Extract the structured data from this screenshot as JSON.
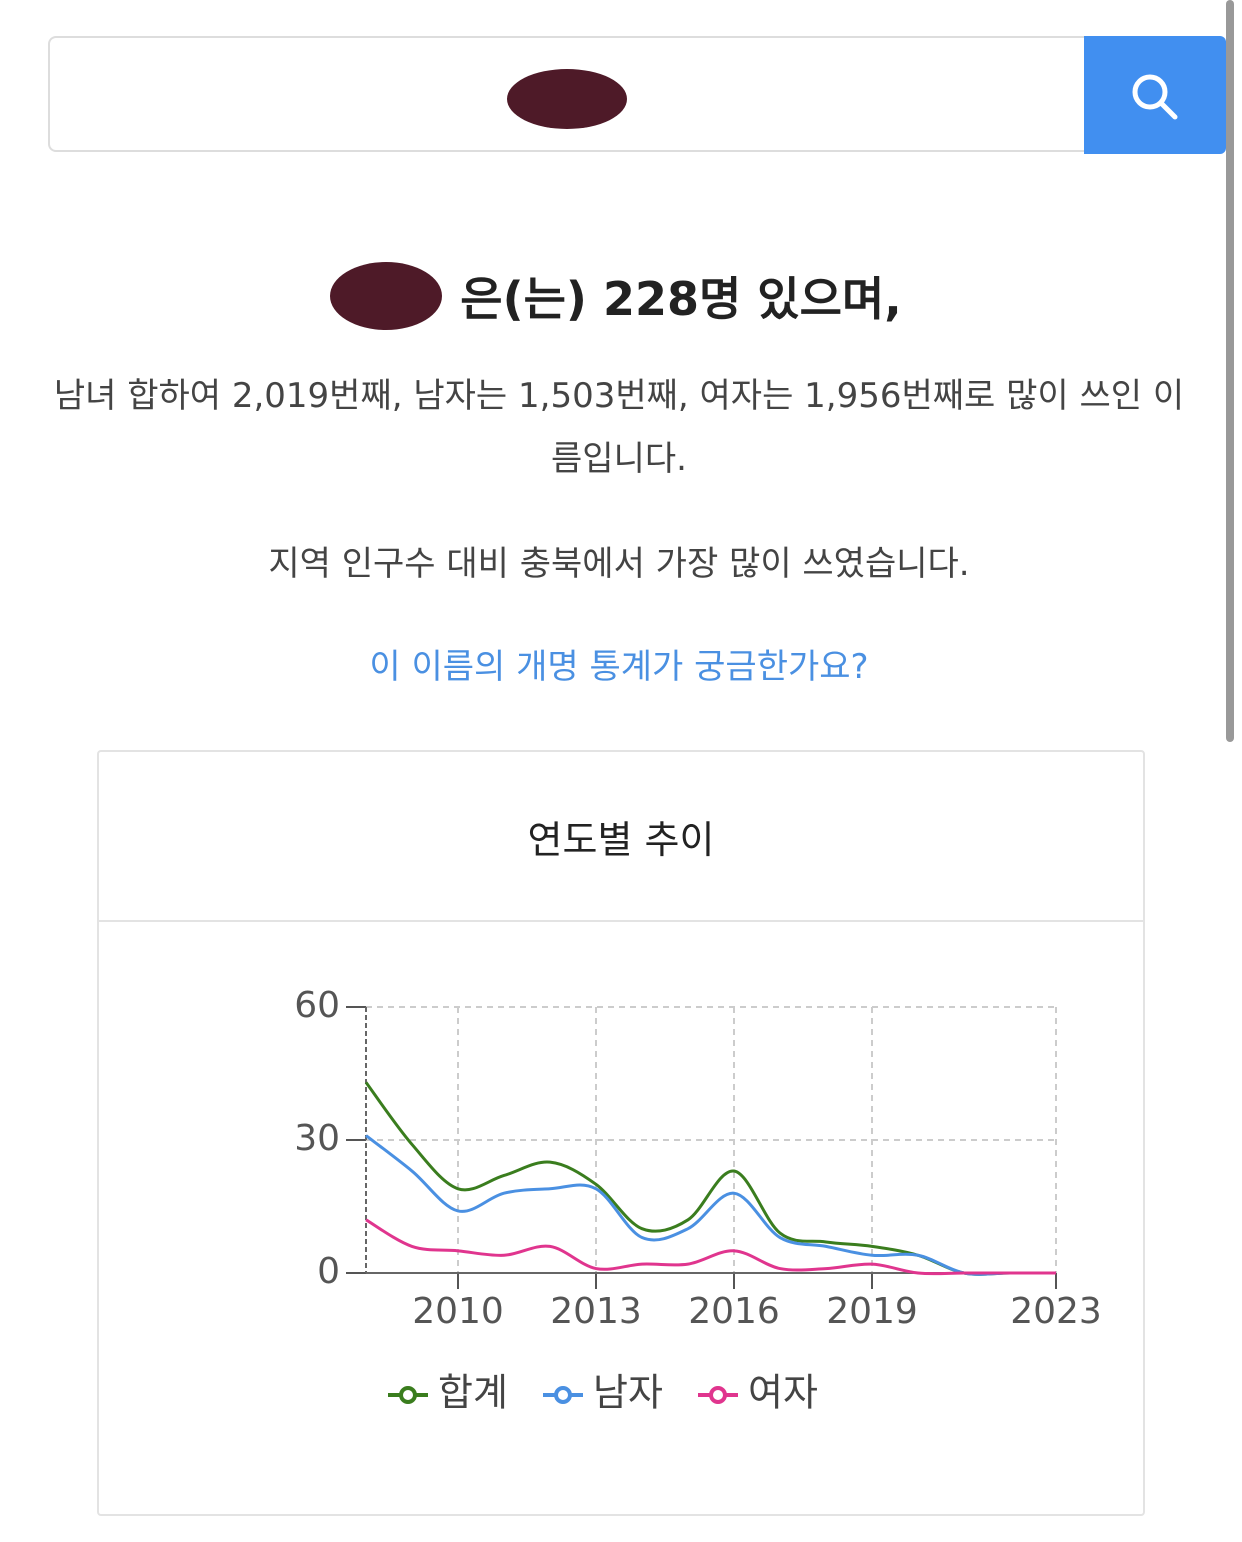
{
  "result": {
    "headline": "은(는) 228명 있으며,",
    "ranking": "남녀 합하여 2,019번째, 남자는 1,503번째, 여자는 1,956번째로 많이 쓰인 이름입니다.",
    "region": "지역 인구수 대비 충북에서 가장 많이 쓰였습니다.",
    "link": "이 이름의 개명 통계가 궁금한가요?"
  },
  "chart_data": {
    "type": "line",
    "title": "연도별 추이",
    "x": [
      2008,
      2009,
      2010,
      2011,
      2012,
      2013,
      2014,
      2015,
      2016,
      2017,
      2018,
      2019,
      2020,
      2021,
      2022,
      2023
    ],
    "series": [
      {
        "name": "합계",
        "color": "#3a7d1e",
        "values": [
          43,
          29,
          19,
          22,
          25,
          20,
          10,
          12,
          23,
          9,
          7,
          6,
          4,
          0,
          0,
          0
        ]
      },
      {
        "name": "남자",
        "color": "#4a90e2",
        "values": [
          31,
          23,
          14,
          18,
          19,
          19,
          8,
          10,
          18,
          8,
          6,
          4,
          4,
          0,
          0,
          0
        ]
      },
      {
        "name": "여자",
        "color": "#e0358e",
        "values": [
          12,
          6,
          5,
          4,
          6,
          1,
          2,
          2,
          5,
          1,
          1,
          2,
          0,
          0,
          0,
          0
        ]
      }
    ],
    "xlim": [
      2008,
      2023
    ],
    "xticks": [
      2010,
      2013,
      2016,
      2019,
      2023
    ],
    "ylim": [
      0,
      60
    ],
    "yticks": [
      0,
      30,
      60
    ],
    "grid": true
  }
}
